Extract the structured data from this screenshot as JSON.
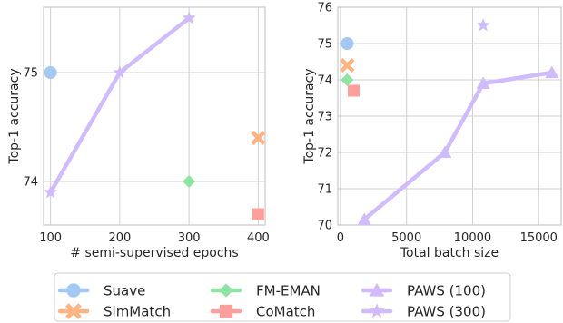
{
  "colors": {
    "Suave": "#a1c9f4",
    "SimMatch": "#ffb482",
    "FM-EMAN": "#8de5a1",
    "CoMatch": "#ff9f9b",
    "PAWS (100)": "#d0bbff",
    "PAWS (300)": "#d0bbff"
  },
  "chart_data": [
    {
      "type": "scatter",
      "xlabel": "# semi-supervised epochs",
      "ylabel": "Top-1 accuracy",
      "xlim": [
        90,
        410
      ],
      "ylim": [
        73.6,
        75.6
      ],
      "xticks": [
        100,
        200,
        300,
        400
      ],
      "yticks": [
        74,
        75
      ],
      "grid": true,
      "series": [
        {
          "name": "Suave",
          "marker": "circle",
          "x": [
            100
          ],
          "y": [
            75.0
          ]
        },
        {
          "name": "SimMatch",
          "marker": "x",
          "x": [
            400
          ],
          "y": [
            74.4
          ]
        },
        {
          "name": "FM-EMAN",
          "marker": "diamond",
          "x": [
            300
          ],
          "y": [
            74.0
          ]
        },
        {
          "name": "CoMatch",
          "marker": "square",
          "x": [
            400
          ],
          "y": [
            73.7
          ]
        },
        {
          "name": "PAWS (300)",
          "marker": "star",
          "line": true,
          "x": [
            100,
            200,
            300
          ],
          "y": [
            73.9,
            75.0,
            75.5
          ]
        }
      ]
    },
    {
      "type": "scatter",
      "xlabel": "Total batch size",
      "ylabel": "Top-1 accuracy",
      "xlim": [
        -200,
        16700
      ],
      "ylim": [
        70,
        76
      ],
      "xticks": [
        0,
        5000,
        10000,
        15000
      ],
      "yticks": [
        70,
        71,
        72,
        73,
        74,
        75,
        76
      ],
      "grid": true,
      "series": [
        {
          "name": "Suave",
          "marker": "circle",
          "x": [
            512
          ],
          "y": [
            75.0
          ]
        },
        {
          "name": "SimMatch",
          "marker": "x",
          "x": [
            512
          ],
          "y": [
            74.4
          ]
        },
        {
          "name": "FM-EMAN",
          "marker": "diamond",
          "x": [
            512
          ],
          "y": [
            74.0
          ]
        },
        {
          "name": "CoMatch",
          "marker": "square",
          "x": [
            1000
          ],
          "y": [
            73.7
          ]
        },
        {
          "name": "PAWS (100)",
          "marker": "triangle",
          "line": true,
          "x": [
            1800,
            7900,
            10800,
            16000
          ],
          "y": [
            70.15,
            72.0,
            73.9,
            74.2
          ]
        },
        {
          "name": "PAWS (300)",
          "marker": "star",
          "x": [
            10800
          ],
          "y": [
            75.5
          ]
        }
      ]
    }
  ],
  "legend": {
    "placement": "bottom-center",
    "items": [
      {
        "label": "Suave",
        "marker": "circle"
      },
      {
        "label": "SimMatch",
        "marker": "x"
      },
      {
        "label": "FM-EMAN",
        "marker": "diamond"
      },
      {
        "label": "CoMatch",
        "marker": "square"
      },
      {
        "label": "PAWS (100)",
        "marker": "triangle"
      },
      {
        "label": "PAWS (300)",
        "marker": "star"
      }
    ]
  }
}
